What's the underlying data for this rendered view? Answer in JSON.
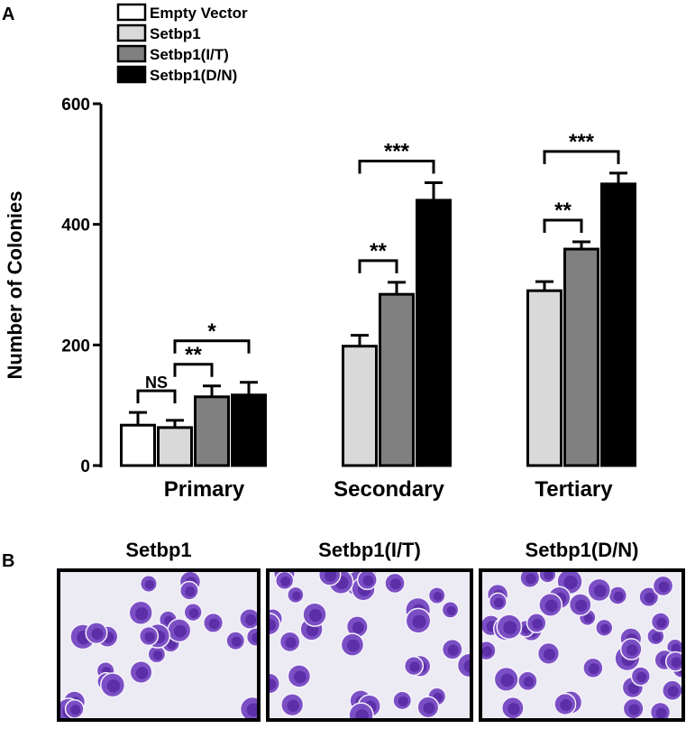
{
  "chart_data": {
    "type": "bar",
    "panel_labels": [
      "A",
      "B"
    ],
    "ylabel": "Number of Colonies",
    "categories": [
      "Primary",
      "Secondary",
      "Tertiary"
    ],
    "series": [
      {
        "name": "Empty Vector",
        "color": "#ffffff",
        "values": [
          67,
          null,
          null
        ],
        "errors": [
          21,
          null,
          null
        ]
      },
      {
        "name": "Setbp1",
        "color": "#d9d9d9",
        "values": [
          63,
          198,
          290
        ],
        "errors": [
          12,
          18,
          15
        ]
      },
      {
        "name": "Setbp1(I/T)",
        "color": "#808080",
        "values": [
          114,
          284,
          359
        ],
        "errors": [
          18,
          20,
          12
        ]
      },
      {
        "name": "Setbp1(D/N)",
        "color": "#000000",
        "values": [
          117,
          440,
          467
        ],
        "errors": [
          21,
          29,
          18
        ]
      }
    ],
    "ylim": [
      0,
      600
    ],
    "yticks": [
      0,
      200,
      400,
      600
    ],
    "legend": "upper left",
    "annotations": [
      {
        "text": "NS",
        "category": "Primary",
        "from": "Empty Vector",
        "to": "Setbp1"
      },
      {
        "text": "**",
        "category": "Primary",
        "from": "Setbp1",
        "to": "Setbp1(I/T)"
      },
      {
        "text": "*",
        "category": "Primary",
        "from": "Setbp1",
        "to": "Setbp1(D/N)"
      },
      {
        "text": "**",
        "category": "Secondary",
        "from": "Setbp1",
        "to": "Setbp1(I/T)"
      },
      {
        "text": "***",
        "category": "Secondary",
        "from": "Setbp1",
        "to": "Setbp1(D/N)"
      },
      {
        "text": "**",
        "category": "Tertiary",
        "from": "Setbp1",
        "to": "Setbp1(I/T)"
      },
      {
        "text": "***",
        "category": "Tertiary",
        "from": "Setbp1",
        "to": "Setbp1(D/N)"
      }
    ],
    "image_titles": [
      "Setbp1",
      "Setbp1(I/T)",
      "Setbp1(D/N)"
    ]
  }
}
